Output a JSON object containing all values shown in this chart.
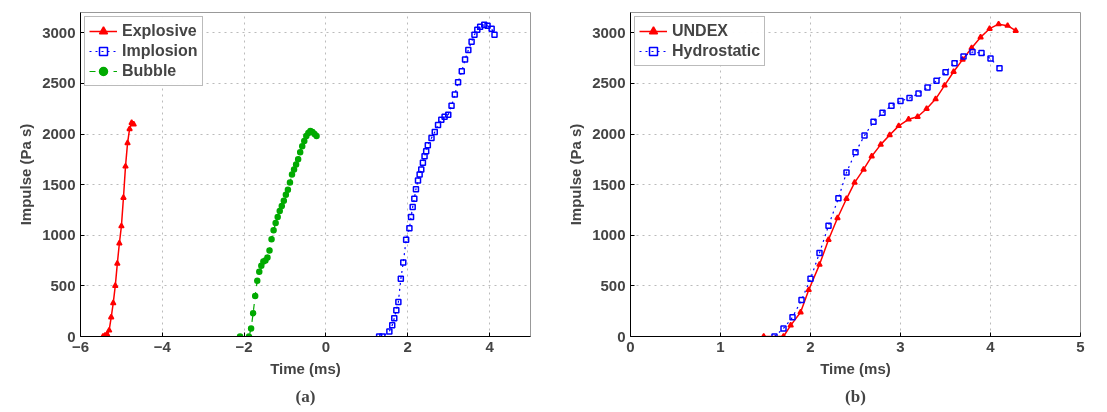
{
  "chart_data": [
    {
      "type": "line",
      "xlabel": "Time (ms)",
      "ylabel": "Impulse (Pa s)",
      "annotations": [
        "(a)"
      ],
      "xlim": [
        -6,
        5
      ],
      "ylim": [
        0,
        3200
      ],
      "xticks": [
        -6,
        -4,
        -2,
        0,
        2,
        4
      ],
      "yticks": [
        0,
        500,
        1000,
        1500,
        2000,
        2500,
        3000
      ],
      "grid": true,
      "legend": "top left",
      "series": [
        {
          "name": "Explosive",
          "color": "#ff0000",
          "marker": "triangle",
          "line_style": "solid",
          "x": [
            -5.45,
            -5.4,
            -5.35,
            -5.3,
            -5.25,
            -5.2,
            -5.15,
            -5.1,
            -5.05,
            -5.0,
            -4.95,
            -4.9,
            -4.85,
            -4.8,
            -4.75,
            -4.7
          ],
          "values": [
            0,
            10,
            20,
            60,
            190,
            330,
            500,
            720,
            920,
            1090,
            1370,
            1680,
            1910,
            2050,
            2110,
            2095
          ]
        },
        {
          "name": "Implosion",
          "color": "#0000ff",
          "marker": "square",
          "line_style": "dotted",
          "x": [
            1.3,
            1.38,
            1.55,
            1.62,
            1.67,
            1.72,
            1.77,
            1.83,
            1.89,
            1.96,
            2.04,
            2.08,
            2.12,
            2.16,
            2.2,
            2.25,
            2.29,
            2.33,
            2.37,
            2.41,
            2.45,
            2.49,
            2.58,
            2.66,
            2.74,
            2.82,
            2.9,
            2.99,
            3.07,
            3.15,
            3.23,
            3.32,
            3.4,
            3.48,
            3.56,
            3.63,
            3.7,
            3.77,
            3.87,
            3.95,
            4.05,
            4.12
          ],
          "values": [
            0,
            0,
            50,
            110,
            180,
            260,
            340,
            570,
            730,
            955,
            1070,
            1180,
            1280,
            1360,
            1455,
            1540,
            1600,
            1650,
            1715,
            1780,
            1830,
            1890,
            1960,
            2020,
            2090,
            2140,
            2170,
            2190,
            2280,
            2390,
            2510,
            2620,
            2735,
            2830,
            2910,
            2980,
            3030,
            3060,
            3080,
            3070,
            3040,
            2980
          ]
        },
        {
          "name": "Bubble",
          "color": "#00aa00",
          "marker": "circle",
          "line_style": "dashed",
          "x": [
            -2.1,
            -1.88,
            -1.83,
            -1.78,
            -1.73,
            -1.68,
            -1.63,
            -1.58,
            -1.53,
            -1.48,
            -1.43,
            -1.38,
            -1.33,
            -1.28,
            -1.23,
            -1.18,
            -1.13,
            -1.08,
            -1.03,
            -0.98,
            -0.93,
            -0.88,
            -0.83,
            -0.78,
            -0.73,
            -0.68,
            -0.63,
            -0.58,
            -0.53,
            -0.48,
            -0.43,
            -0.38,
            -0.33,
            -0.28,
            -0.23
          ],
          "values": [
            0,
            0,
            80,
            230,
            400,
            550,
            640,
            700,
            740,
            750,
            780,
            850,
            960,
            1050,
            1120,
            1180,
            1240,
            1290,
            1340,
            1400,
            1450,
            1520,
            1600,
            1650,
            1700,
            1750,
            1820,
            1880,
            1930,
            1980,
            2010,
            2030,
            2020,
            2000,
            1980
          ]
        }
      ]
    },
    {
      "type": "line",
      "xlabel": "Time (ms)",
      "ylabel": "Impulse (Pa s)",
      "annotations": [
        "(b)"
      ],
      "xlim": [
        0,
        5
      ],
      "ylim": [
        0,
        3200
      ],
      "xticks": [
        0,
        1,
        2,
        3,
        4,
        5
      ],
      "yticks": [
        0,
        500,
        1000,
        1500,
        2000,
        2500,
        3000
      ],
      "grid": true,
      "legend": "top left",
      "series": [
        {
          "name": "UNDEX",
          "color": "#ff0000",
          "marker": "triangle",
          "line_style": "solid",
          "x": [
            1.48,
            1.7,
            1.78,
            1.89,
            1.98,
            2.1,
            2.2,
            2.3,
            2.4,
            2.49,
            2.59,
            2.68,
            2.78,
            2.88,
            2.98,
            3.09,
            3.19,
            3.29,
            3.39,
            3.49,
            3.59,
            3.69,
            3.79,
            3.89,
            3.99,
            4.09,
            4.19,
            4.28
          ],
          "values": [
            0,
            0,
            110,
            240,
            460,
            710,
            955,
            1170,
            1360,
            1520,
            1650,
            1780,
            1895,
            1990,
            2080,
            2145,
            2170,
            2250,
            2345,
            2480,
            2615,
            2735,
            2850,
            2955,
            3040,
            3085,
            3070,
            3020
          ]
        },
        {
          "name": "Hydrostatic",
          "color": "#0000ff",
          "marker": "square",
          "line_style": "dotted",
          "x": [
            1.6,
            1.7,
            1.8,
            1.9,
            2.0,
            2.1,
            2.2,
            2.31,
            2.4,
            2.5,
            2.6,
            2.7,
            2.8,
            2.9,
            3.0,
            3.1,
            3.2,
            3.3,
            3.4,
            3.5,
            3.6,
            3.7,
            3.8,
            3.9,
            4.0,
            4.1
          ],
          "values": [
            0,
            80,
            190,
            360,
            570,
            825,
            1095,
            1365,
            1620,
            1820,
            1985,
            2120,
            2210,
            2280,
            2325,
            2355,
            2400,
            2460,
            2525,
            2610,
            2700,
            2765,
            2810,
            2800,
            2745,
            2650
          ]
        }
      ]
    }
  ]
}
